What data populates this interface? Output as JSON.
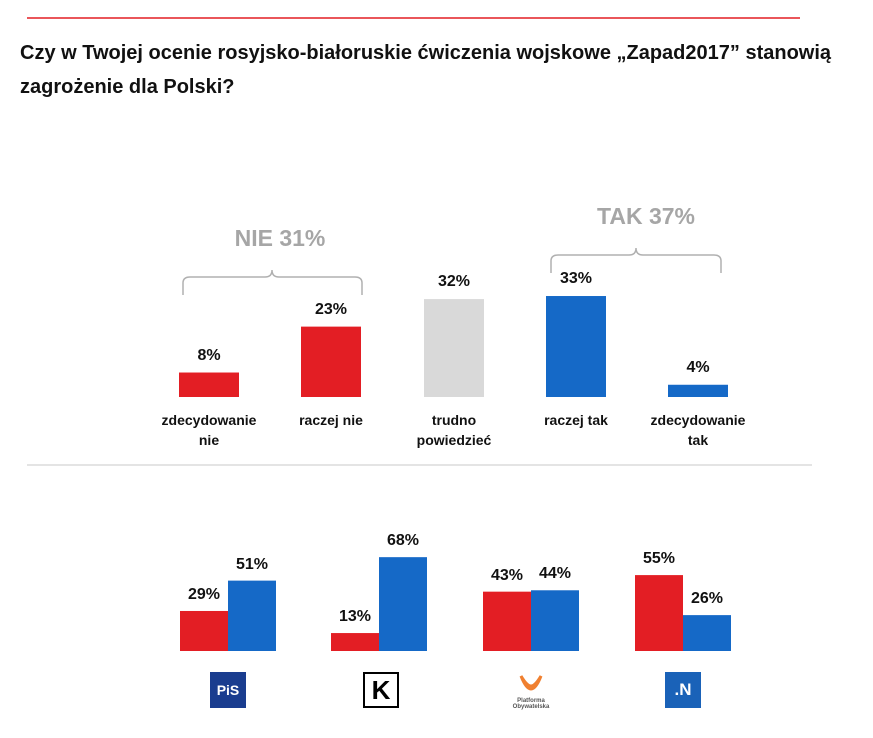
{
  "chart_data": [
    {
      "type": "bar",
      "title": "Czy w Twojej ocenie rosyjsko-białoruskie ćwiczenia wojskowe „Zapad2017” stanowią zagrożenie dla Polski?",
      "categories": [
        "zdecydowanie nie",
        "raczej nie",
        "trudno powiedzieć",
        "raczej tak",
        "zdecydowanie tak"
      ],
      "values": [
        8,
        23,
        32,
        33,
        4
      ],
      "value_labels": [
        "8%",
        "23%",
        "32%",
        "33%",
        "4%"
      ],
      "colors": [
        "#e31e24",
        "#e31e24",
        "#d9d9d9",
        "#1569c7",
        "#1569c7"
      ],
      "annotations": [
        "NIE 31%",
        "TAK 37%"
      ]
    },
    {
      "type": "grouped_bar",
      "categories": [
        "PiS",
        "K",
        "Platforma Obywatelska",
        ".N"
      ],
      "series": [
        {
          "color": "#e31e24",
          "values": [
            29,
            13,
            43,
            55
          ],
          "value_labels": [
            "29%",
            "13%",
            "43%",
            "55%"
          ]
        },
        {
          "color": "#1569c7",
          "values": [
            51,
            68,
            44,
            26
          ],
          "value_labels": [
            "51%",
            "68%",
            "44%",
            "26%"
          ]
        }
      ]
    }
  ]
}
